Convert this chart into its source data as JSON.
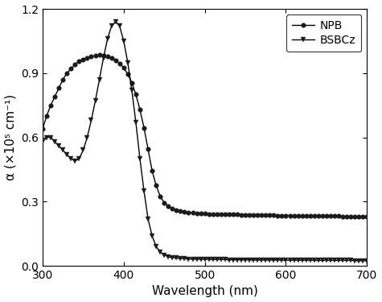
{
  "title": "",
  "xlabel": "Wavelength (nm)",
  "ylabel": "α (×10⁵ cm⁻¹)",
  "xlim": [
    300,
    700
  ],
  "ylim": [
    0,
    1.2
  ],
  "yticks": [
    0.0,
    0.3,
    0.6,
    0.9,
    1.2
  ],
  "xticks": [
    300,
    400,
    500,
    600,
    700
  ],
  "NPB_x": [
    300,
    305,
    310,
    315,
    320,
    325,
    330,
    335,
    340,
    345,
    350,
    355,
    360,
    365,
    370,
    375,
    380,
    385,
    390,
    395,
    400,
    405,
    410,
    415,
    420,
    425,
    430,
    435,
    440,
    445,
    450,
    455,
    460,
    465,
    470,
    475,
    480,
    485,
    490,
    495,
    500,
    505,
    510,
    515,
    520,
    525,
    530,
    535,
    540,
    545,
    550,
    555,
    560,
    565,
    570,
    575,
    580,
    585,
    590,
    595,
    600,
    605,
    610,
    615,
    620,
    625,
    630,
    635,
    640,
    645,
    650,
    655,
    660,
    665,
    670,
    675,
    680,
    685,
    690,
    695,
    700
  ],
  "NPB_y": [
    0.64,
    0.7,
    0.75,
    0.79,
    0.83,
    0.87,
    0.9,
    0.92,
    0.94,
    0.955,
    0.965,
    0.972,
    0.978,
    0.982,
    0.984,
    0.982,
    0.978,
    0.97,
    0.96,
    0.945,
    0.925,
    0.895,
    0.855,
    0.8,
    0.73,
    0.645,
    0.545,
    0.445,
    0.375,
    0.325,
    0.295,
    0.278,
    0.268,
    0.261,
    0.256,
    0.252,
    0.249,
    0.247,
    0.245,
    0.244,
    0.243,
    0.242,
    0.241,
    0.241,
    0.24,
    0.24,
    0.239,
    0.239,
    0.239,
    0.238,
    0.238,
    0.238,
    0.237,
    0.237,
    0.237,
    0.236,
    0.236,
    0.236,
    0.235,
    0.235,
    0.235,
    0.235,
    0.234,
    0.234,
    0.234,
    0.234,
    0.233,
    0.233,
    0.233,
    0.233,
    0.232,
    0.232,
    0.232,
    0.232,
    0.231,
    0.231,
    0.231,
    0.231,
    0.231,
    0.23,
    0.23
  ],
  "BSBCz_x": [
    300,
    305,
    310,
    315,
    320,
    325,
    330,
    335,
    340,
    345,
    350,
    355,
    360,
    365,
    370,
    375,
    380,
    385,
    390,
    395,
    400,
    405,
    410,
    415,
    420,
    425,
    430,
    435,
    440,
    445,
    450,
    455,
    460,
    465,
    470,
    475,
    480,
    485,
    490,
    495,
    500,
    505,
    510,
    515,
    520,
    525,
    530,
    535,
    540,
    545,
    550,
    555,
    560,
    565,
    570,
    575,
    580,
    585,
    590,
    595,
    600,
    605,
    610,
    615,
    620,
    625,
    630,
    635,
    640,
    645,
    650,
    655,
    660,
    665,
    670,
    675,
    680,
    685,
    690,
    695,
    700
  ],
  "BSBCz_y": [
    0.58,
    0.6,
    0.6,
    0.58,
    0.56,
    0.54,
    0.52,
    0.5,
    0.49,
    0.5,
    0.54,
    0.6,
    0.68,
    0.77,
    0.87,
    0.97,
    1.06,
    1.12,
    1.14,
    1.12,
    1.05,
    0.95,
    0.82,
    0.67,
    0.5,
    0.35,
    0.22,
    0.14,
    0.09,
    0.065,
    0.05,
    0.042,
    0.038,
    0.036,
    0.034,
    0.033,
    0.032,
    0.031,
    0.031,
    0.03,
    0.03,
    0.03,
    0.029,
    0.029,
    0.029,
    0.029,
    0.028,
    0.028,
    0.028,
    0.028,
    0.028,
    0.028,
    0.027,
    0.027,
    0.027,
    0.027,
    0.027,
    0.027,
    0.027,
    0.026,
    0.026,
    0.026,
    0.026,
    0.026,
    0.026,
    0.026,
    0.026,
    0.025,
    0.025,
    0.025,
    0.025,
    0.025,
    0.025,
    0.025,
    0.025,
    0.025,
    0.025,
    0.024,
    0.024,
    0.024,
    0.024
  ],
  "line_color": "#000000",
  "marker_color": "#1a1a1a",
  "legend_NPB": "NPB",
  "legend_BSBCz": "BSBCz"
}
